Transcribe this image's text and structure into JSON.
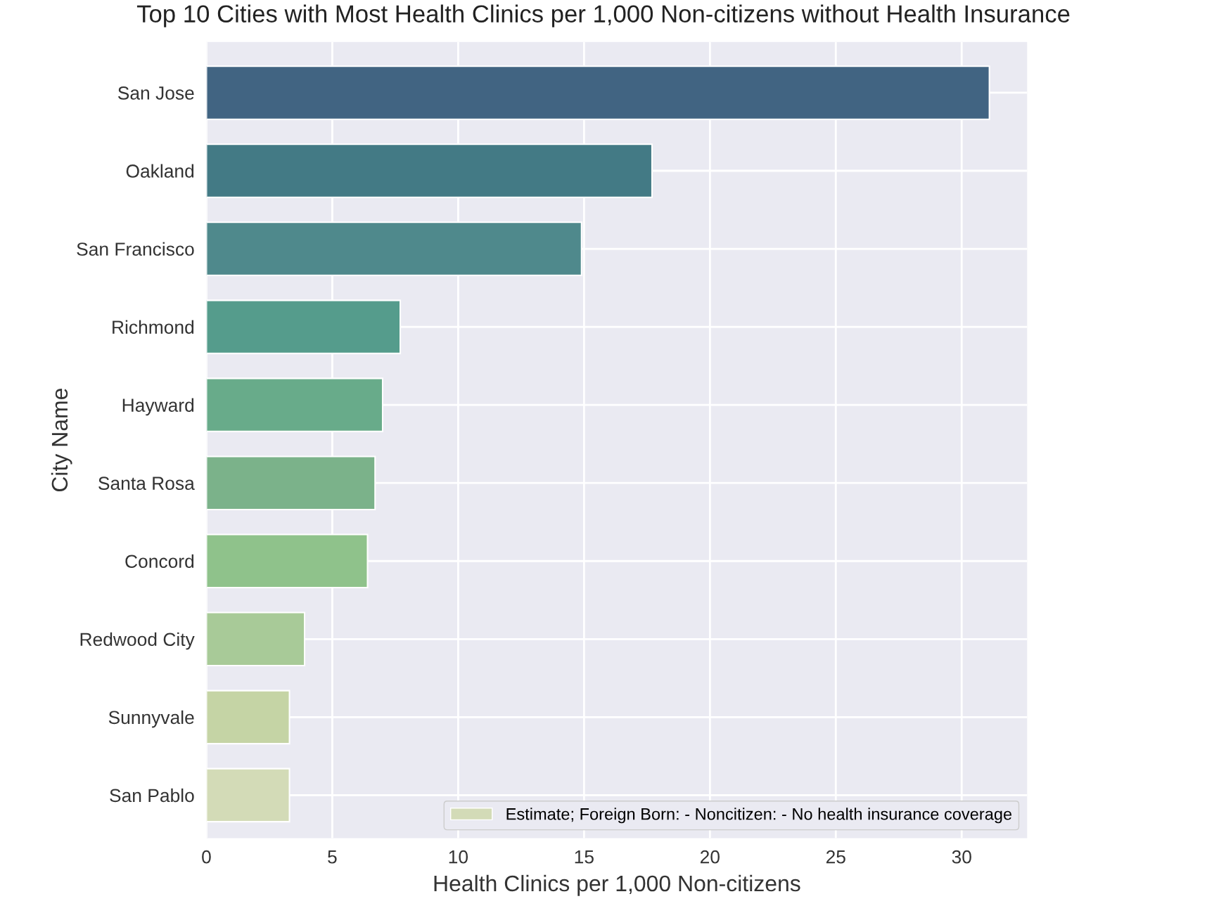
{
  "chart_data": {
    "type": "bar",
    "orientation": "horizontal",
    "title": "Top 10 Cities with Most Health Clinics per 1,000 Non-citizens without Health Insurance",
    "xlabel": "Health Clinics per 1,000 Non-citizens",
    "ylabel": "City Name",
    "categories": [
      "San Jose",
      "Oakland",
      "San Francisco",
      "Richmond",
      "Hayward",
      "Santa Rosa",
      "Concord",
      "Redwood City",
      "Sunnyvale",
      "San Pablo"
    ],
    "series": [
      {
        "name": "Estimate; Foreign Born: - Noncitizen: - No health insurance coverage",
        "color": "#d3dbb7",
        "colors": [
          "#416482",
          "#437a85",
          "#4f898c",
          "#559c8c",
          "#68ab8a",
          "#7bb28a",
          "#8fc28b",
          "#a8ca98",
          "#c5d4a5",
          "#d3dbb7"
        ],
        "values": [
          31.1,
          17.7,
          14.9,
          7.7,
          7.0,
          6.7,
          6.4,
          3.9,
          3.3,
          3.3
        ]
      }
    ],
    "xlim": [
      0,
      32.6
    ],
    "xticks": [
      0,
      5,
      10,
      15,
      20,
      25,
      30
    ],
    "grid": true,
    "legend": "bottom right"
  }
}
